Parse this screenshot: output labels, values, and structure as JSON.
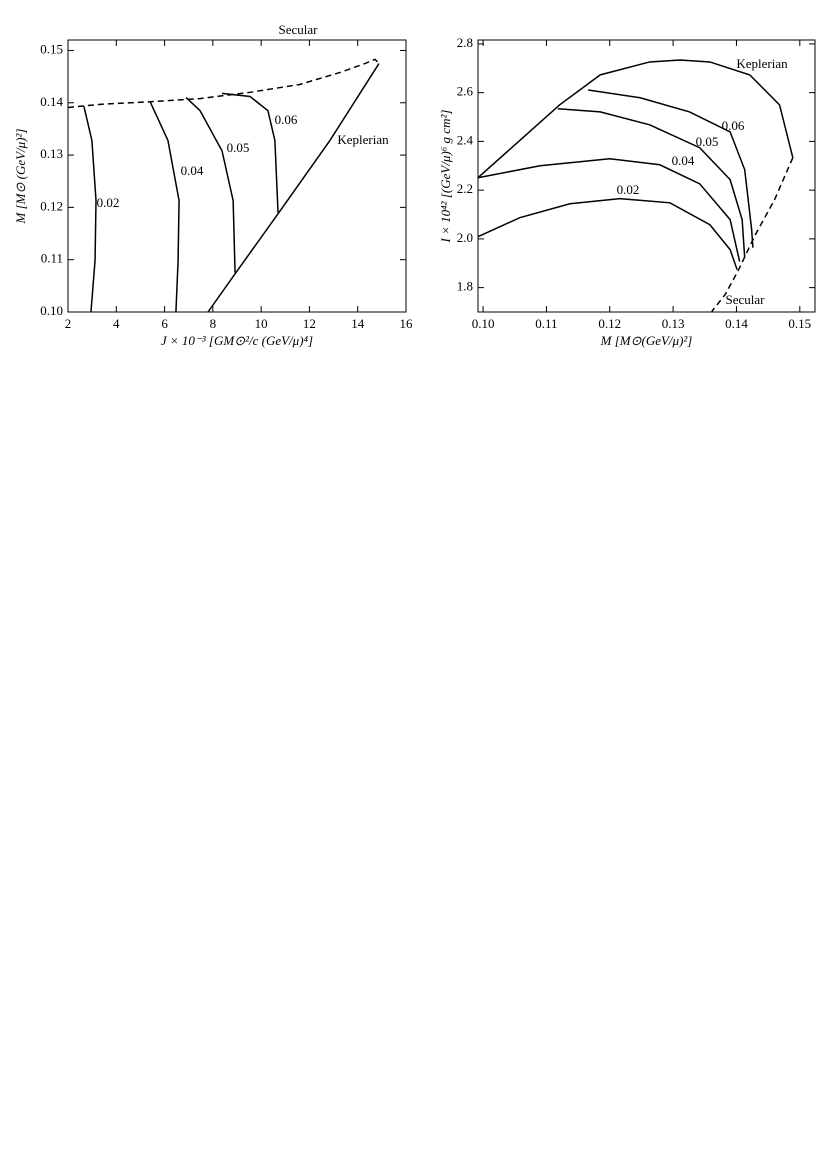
{
  "chart_data": [
    {
      "type": "line",
      "xlabel": "J × 10⁻³ [GM⊙²/c (GeV/μ)⁴]",
      "ylabel": "M [M⊙ (GeV/μ)²]",
      "xlim": [
        2,
        16
      ],
      "xticks": [
        2,
        4,
        6,
        8,
        10,
        12,
        14,
        16
      ],
      "ylim": [
        0.1,
        0.152
      ],
      "yticks": [
        {
          "value": 0.1,
          "label": "0.10"
        },
        0.11,
        0.12,
        0.13,
        0.14,
        0.15
      ],
      "series": [
        {
          "name": "Secular",
          "color": "#000000",
          "linestyle": "dashed",
          "x": [
            2,
            3.33,
            5.4,
            7.47,
            9.54,
            11.6,
            13.27,
            14.3,
            14.72,
            14.88
          ],
          "values": [
            0.1391,
            0.1397,
            0.1402,
            0.1408,
            0.142,
            0.1435,
            0.1458,
            0.1475,
            0.1483,
            0.1475
          ]
        },
        {
          "name": "Keplerian",
          "color": "#000000",
          "linestyle": "solid",
          "x": [
            14.88,
            12.85,
            10.78,
            8.92,
            7.8
          ],
          "values": [
            0.1475,
            0.1328,
            0.1193,
            0.1073,
            0.1
          ]
        },
        {
          "name": "0.02",
          "color": "#000000",
          "linestyle": "solid",
          "x": [
            2.66,
            2.99,
            3.16,
            3.12,
            2.95
          ],
          "values": [
            0.1393,
            0.1328,
            0.1213,
            0.1098,
            0.1
          ]
        },
        {
          "name": "0.04",
          "color": "#000000",
          "linestyle": "solid",
          "x": [
            5.4,
            6.14,
            6.6,
            6.56,
            6.47
          ],
          "values": [
            0.1402,
            0.1328,
            0.1213,
            0.1098,
            0.1
          ]
        },
        {
          "name": "0.05",
          "color": "#000000",
          "linestyle": "solid",
          "x": [
            6.89,
            7.47,
            8.38,
            8.84,
            8.92
          ],
          "values": [
            0.141,
            0.1385,
            0.1308,
            0.1213,
            0.1075
          ]
        },
        {
          "name": "0.06",
          "color": "#000000",
          "linestyle": "solid",
          "x": [
            8.38,
            9.54,
            10.28,
            10.57,
            10.7
          ],
          "values": [
            0.1418,
            0.1412,
            0.1385,
            0.1328,
            0.119
          ]
        }
      ]
    },
    {
      "type": "line",
      "xlabel": "M [M⊙(GeV/μ)²]",
      "ylabel": "I × 10⁴² [(GeV/μ)⁶ g cm²]",
      "xlim": [
        0.0992,
        0.1524
      ],
      "xticks": [
        {
          "value": 0.1,
          "label": "0.10"
        },
        0.11,
        0.12,
        0.13,
        0.14,
        0.15
      ],
      "ylim": [
        1.7,
        2.816
      ],
      "yticks": [
        1.8,
        {
          "value": 2,
          "label": "2.0"
        },
        2.2,
        2.4,
        2.6,
        2.8
      ],
      "series": [
        {
          "name": "Keplerian",
          "color": "#000000",
          "linestyle": "solid",
          "x": [
            0.0992,
            0.1121,
            0.1185,
            0.1263,
            0.1311,
            0.1358,
            0.1421,
            0.1468,
            0.1489
          ],
          "values": [
            2.251,
            2.55,
            2.673,
            2.726,
            2.734,
            2.726,
            2.673,
            2.55,
            2.333
          ]
        },
        {
          "name": "Secular",
          "color": "#000000",
          "linestyle": "dashed",
          "x": [
            0.1489,
            0.146,
            0.1429,
            0.1402,
            0.1382,
            0.1361
          ],
          "values": [
            2.333,
            2.16,
            2.013,
            1.866,
            1.771,
            1.702
          ]
        },
        {
          "name": "0.02",
          "color": "#000000",
          "linestyle": "solid",
          "x": [
            0.0992,
            0.1058,
            0.1137,
            0.1216,
            0.1295,
            0.1358,
            0.139,
            0.1401
          ],
          "values": [
            2.009,
            2.087,
            2.144,
            2.165,
            2.148,
            2.058,
            1.956,
            1.874
          ]
        },
        {
          "name": "0.04",
          "color": "#000000",
          "linestyle": "solid",
          "x": [
            0.0992,
            0.109,
            0.12,
            0.1279,
            0.1342,
            0.139,
            0.1405
          ],
          "values": [
            2.251,
            2.3,
            2.329,
            2.304,
            2.226,
            2.079,
            1.907
          ]
        },
        {
          "name": "0.05",
          "color": "#000000",
          "linestyle": "solid",
          "x": [
            0.1118,
            0.1185,
            0.1263,
            0.1342,
            0.139,
            0.1409,
            0.1413
          ],
          "values": [
            2.534,
            2.521,
            2.468,
            2.374,
            2.243,
            2.079,
            1.923
          ]
        },
        {
          "name": "0.06",
          "color": "#000000",
          "linestyle": "solid",
          "x": [
            0.1166,
            0.1248,
            0.1326,
            0.139,
            0.1413,
            0.1424,
            0.1426
          ],
          "values": [
            2.611,
            2.579,
            2.521,
            2.439,
            2.284,
            2.038,
            1.964
          ]
        }
      ]
    }
  ]
}
